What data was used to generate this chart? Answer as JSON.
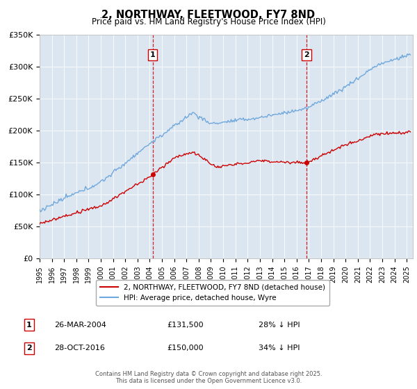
{
  "title": "2, NORTHWAY, FLEETWOOD, FY7 8ND",
  "subtitle": "Price paid vs. HM Land Registry's House Price Index (HPI)",
  "ylim": [
    0,
    350000
  ],
  "yticks": [
    0,
    50000,
    100000,
    150000,
    200000,
    250000,
    300000,
    350000
  ],
  "ytick_labels": [
    "£0",
    "£50K",
    "£100K",
    "£150K",
    "£200K",
    "£250K",
    "£300K",
    "£350K"
  ],
  "xlim_start": 1995.0,
  "xlim_end": 2025.5,
  "sale1_date": 2004.23,
  "sale1_price": 131500,
  "sale1_label": "1",
  "sale1_text": "26-MAR-2004",
  "sale1_amount": "£131,500",
  "sale1_hpi": "28% ↓ HPI",
  "sale2_date": 2016.83,
  "sale2_price": 150000,
  "sale2_label": "2",
  "sale2_text": "28-OCT-2016",
  "sale2_amount": "£150,000",
  "sale2_hpi": "34% ↓ HPI",
  "hpi_color": "#6fa8dc",
  "price_color": "#cc0000",
  "marker_box_color": "#cc0000",
  "plot_bg_color": "#dce6f1",
  "legend_line1": "2, NORTHWAY, FLEETWOOD, FY7 8ND (detached house)",
  "legend_line2": "HPI: Average price, detached house, Wyre",
  "footer": "Contains HM Land Registry data © Crown copyright and database right 2025.\nThis data is licensed under the Open Government Licence v3.0."
}
